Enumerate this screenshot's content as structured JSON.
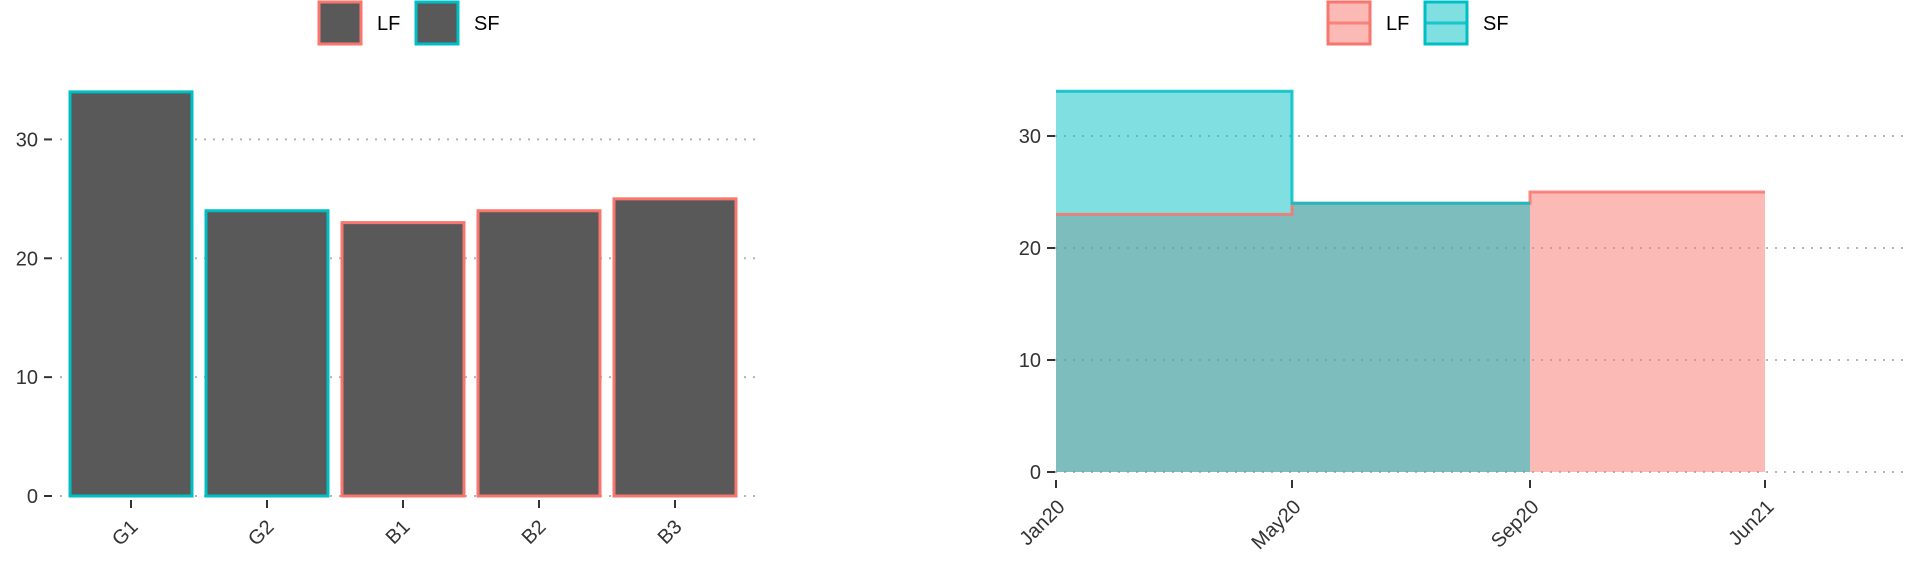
{
  "colors": {
    "LF": "#F8766D",
    "SF": "#00BFC4",
    "bar_fill": "#595959",
    "LF_fill": "#F8766D",
    "SF_fill": "#00BFC4",
    "overlap_fill": "#7FBDBA"
  },
  "chart_data": [
    {
      "type": "bar",
      "title": "",
      "xlabel": "",
      "ylabel": "",
      "categories": [
        "G1",
        "G2",
        "B1",
        "B2",
        "B3"
      ],
      "values": [
        34,
        24,
        23,
        24,
        25
      ],
      "groups": [
        "SF",
        "SF",
        "LF",
        "LF",
        "LF"
      ],
      "yticks": [
        0,
        10,
        20,
        30
      ],
      "ylim": [
        0,
        35
      ],
      "grid": "horizontal dotted",
      "legend": {
        "position": "top",
        "entries": [
          "LF",
          "SF"
        ]
      }
    },
    {
      "type": "area",
      "title": "",
      "xlabel": "",
      "ylabel": "",
      "x_ticks": [
        "Jan20",
        "May20",
        "Sep20",
        "Jun21"
      ],
      "series": [
        {
          "name": "LF",
          "steps": [
            {
              "from": "Jan20",
              "to": "May20",
              "value": 23
            },
            {
              "from": "May20",
              "to": "Sep20",
              "value": 24
            },
            {
              "from": "Sep20",
              "to": "Jun21",
              "value": 25
            }
          ]
        },
        {
          "name": "SF",
          "steps": [
            {
              "from": "Jan20",
              "to": "May20",
              "value": 34
            },
            {
              "from": "May20",
              "to": "Sep20",
              "value": 24
            }
          ]
        }
      ],
      "yticks": [
        0,
        10,
        20,
        30
      ],
      "ylim": [
        0,
        35
      ],
      "grid": "horizontal dotted",
      "legend": {
        "position": "top",
        "entries": [
          "LF",
          "SF"
        ]
      }
    }
  ]
}
